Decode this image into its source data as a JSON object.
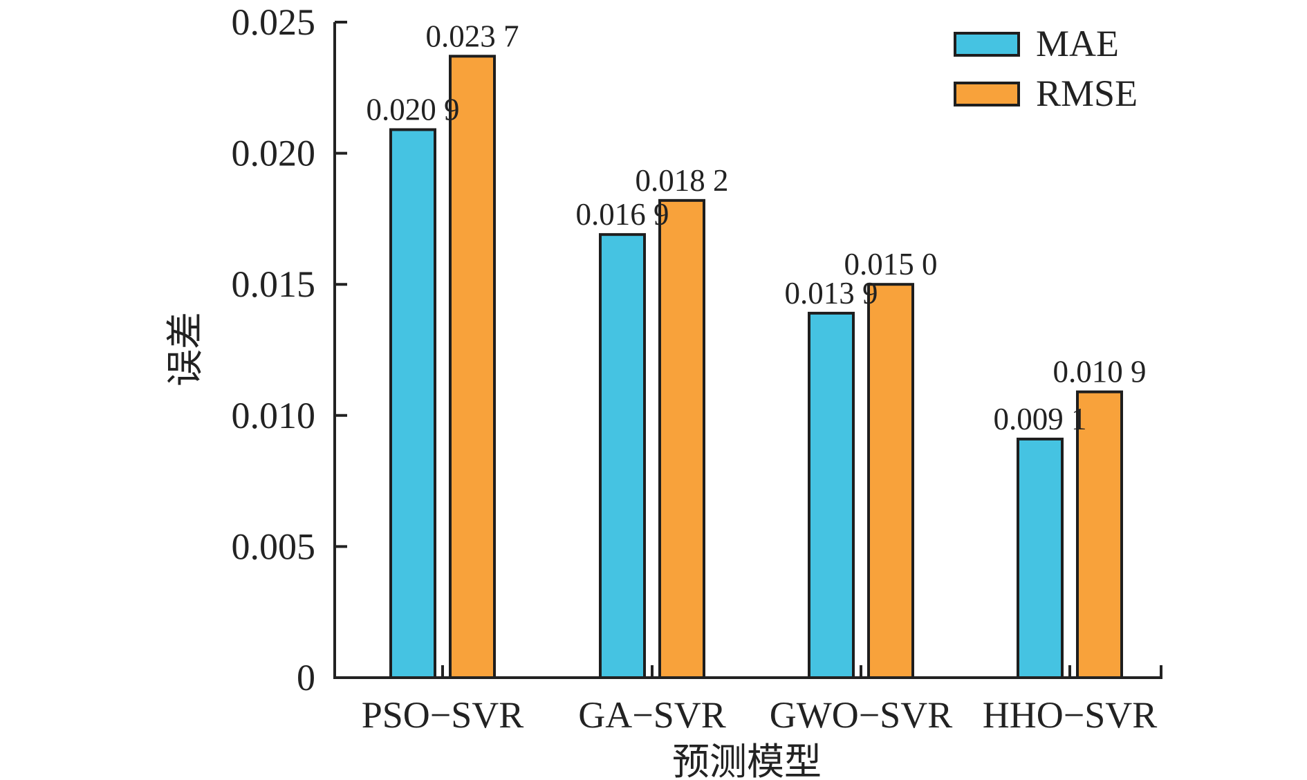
{
  "chart_data": {
    "type": "bar",
    "categories": [
      "PSO−SVR",
      "GA−SVR",
      "GWO−SVR",
      "HHO−SVR"
    ],
    "series": [
      {
        "name": "MAE",
        "color": "#45c3e2",
        "values": [
          0.0209,
          0.0169,
          0.0139,
          0.0091
        ],
        "labels": [
          "0.020 9",
          "0.016 9",
          "0.013 9",
          "0.009 1"
        ]
      },
      {
        "name": "RMSE",
        "color": "#f8a23b",
        "values": [
          0.0237,
          0.0182,
          0.015,
          0.0109
        ],
        "labels": [
          "0.023 7",
          "0.018 2",
          "0.015 0",
          "0.010 9"
        ]
      }
    ],
    "xlabel": "预测模型",
    "ylabel": "误差",
    "ylim": [
      0,
      0.025
    ],
    "yticks": [
      0,
      0.005,
      0.01,
      0.015,
      0.02,
      0.025
    ],
    "ytick_labels": [
      "0",
      "0.005",
      "0.010",
      "0.015",
      "0.020",
      "0.025"
    ],
    "legend_position": "top-right",
    "grid": false
  }
}
